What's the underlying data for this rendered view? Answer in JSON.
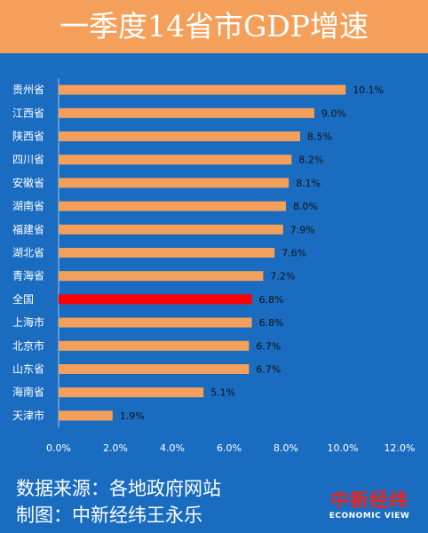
{
  "title": "一季度14省市GDP增速",
  "footer": {
    "source": "数据来源：各地政府网站",
    "credit": "制图：中新经纬王永乐"
  },
  "logo": {
    "name_cn": "中新经纬",
    "name_en": "ECONOMIC VIEW"
  },
  "colors": {
    "background": "#1a6cc0",
    "header": "#f5a05a",
    "bar": "#f5a05a",
    "highlight": "#ff0000"
  },
  "chart_data": {
    "type": "bar",
    "orientation": "horizontal",
    "categories": [
      "贵州省",
      "江西省",
      "陕西省",
      "四川省",
      "安徽省",
      "湖南省",
      "福建省",
      "湖北省",
      "青海省",
      "全国",
      "上海市",
      "北京市",
      "山东省",
      "海南省",
      "天津市"
    ],
    "values": [
      10.1,
      9.0,
      8.5,
      8.2,
      8.1,
      8.0,
      7.9,
      7.6,
      7.2,
      6.8,
      6.8,
      6.7,
      6.7,
      5.1,
      1.9
    ],
    "value_labels": [
      "10.1%",
      "9.0%",
      "8.5%",
      "8.2%",
      "8.1%",
      "8.0%",
      "7.9%",
      "7.6%",
      "7.2%",
      "6.8%",
      "6.8%",
      "6.7%",
      "6.7%",
      "5.1%",
      "1.9%"
    ],
    "highlight_category": "全国",
    "xlim": [
      0,
      12
    ],
    "xticks": [
      0,
      2,
      4,
      6,
      8,
      10,
      12
    ],
    "xtick_labels": [
      "0.0%",
      "2.0%",
      "4.0%",
      "6.0%",
      "8.0%",
      "10.0%",
      "12.0%"
    ],
    "grid": false
  }
}
